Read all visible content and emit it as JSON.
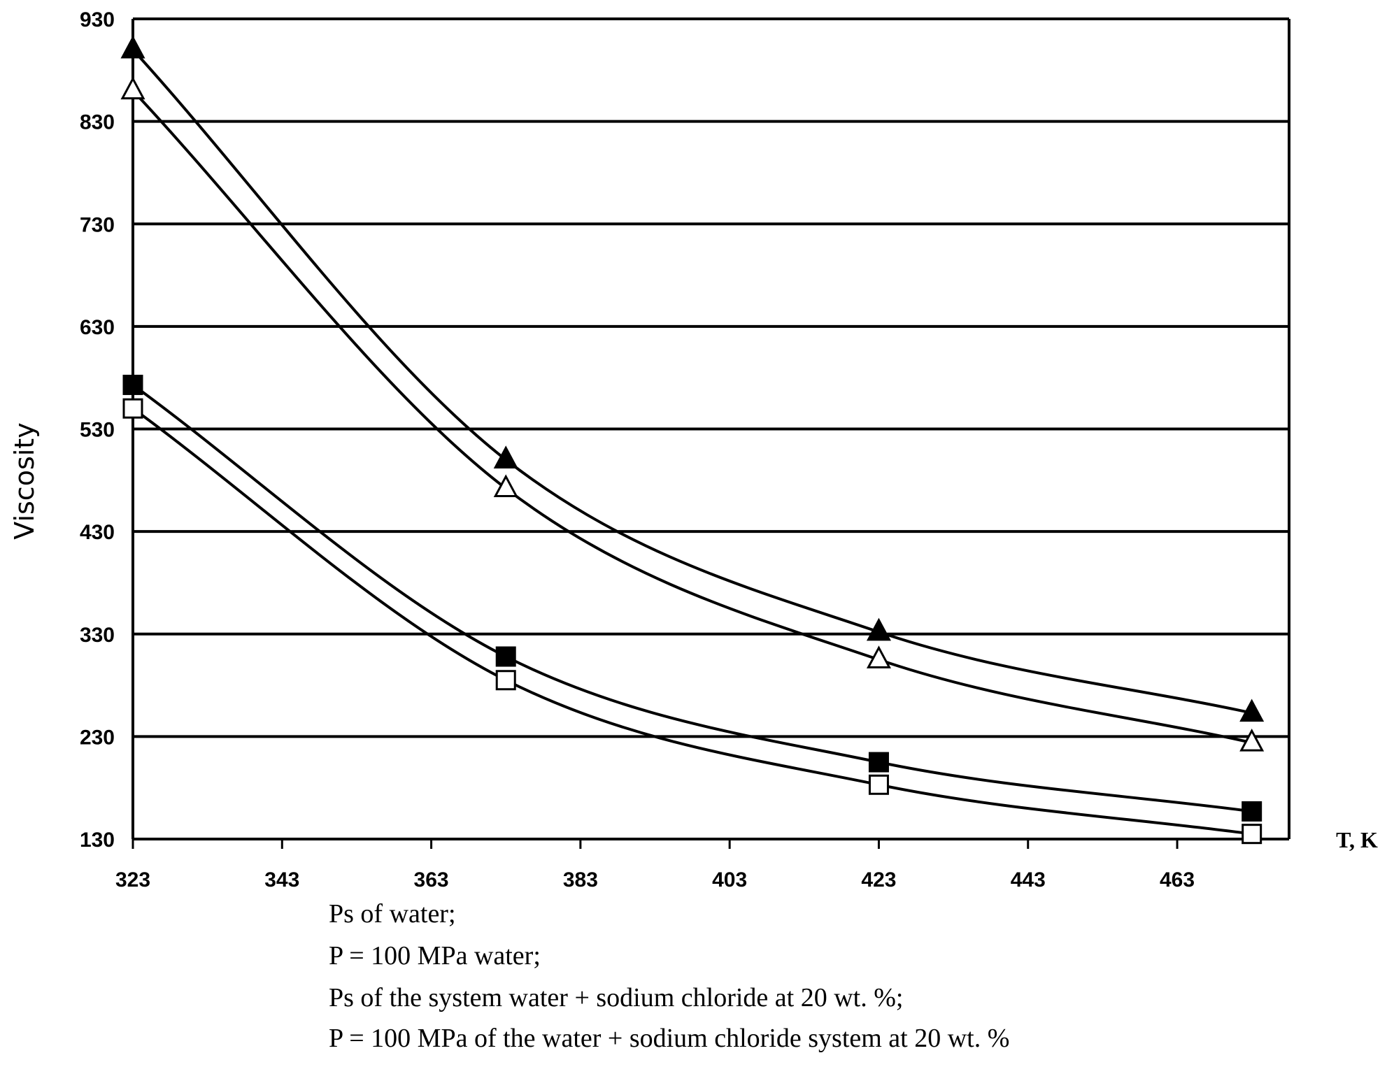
{
  "chart_data": {
    "type": "line",
    "title": "",
    "xlabel": "T, K",
    "ylabel": "Viscosity",
    "xlim": [
      323,
      478
    ],
    "ylim": [
      130,
      930
    ],
    "xticks": [
      323,
      343,
      363,
      383,
      403,
      423,
      443,
      463
    ],
    "yticks": [
      130,
      230,
      330,
      430,
      530,
      630,
      730,
      830,
      930
    ],
    "grid": "horizontal",
    "legend_position": "below-plot",
    "series": [
      {
        "name": "Ps of water",
        "marker": "square-open",
        "x": [
          323,
          373,
          423,
          473
        ],
        "y": [
          550,
          285,
          183,
          135
        ]
      },
      {
        "name": "P = 100 MPa water",
        "marker": "square-filled",
        "x": [
          323,
          373,
          423,
          473
        ],
        "y": [
          573,
          308,
          205,
          157
        ]
      },
      {
        "name": "Ps of the system water + sodium chloride at 20 wt. %",
        "marker": "triangle-open",
        "x": [
          323,
          373,
          423,
          473
        ],
        "y": [
          860,
          472,
          305,
          224
        ]
      },
      {
        "name": "P = 100 MPa of the water + sodium chloride system at 20 wt. %",
        "marker": "triangle-filled",
        "x": [
          323,
          373,
          423,
          473
        ],
        "y": [
          900,
          500,
          332,
          253
        ]
      }
    ]
  },
  "legend": [
    "Ps of water;",
    "P = 100 MPa water;",
    "Ps of the system water + sodium chloride at 20 wt. %;",
    "P = 100 MPa of the water + sodium chloride system at 20 wt. %"
  ]
}
